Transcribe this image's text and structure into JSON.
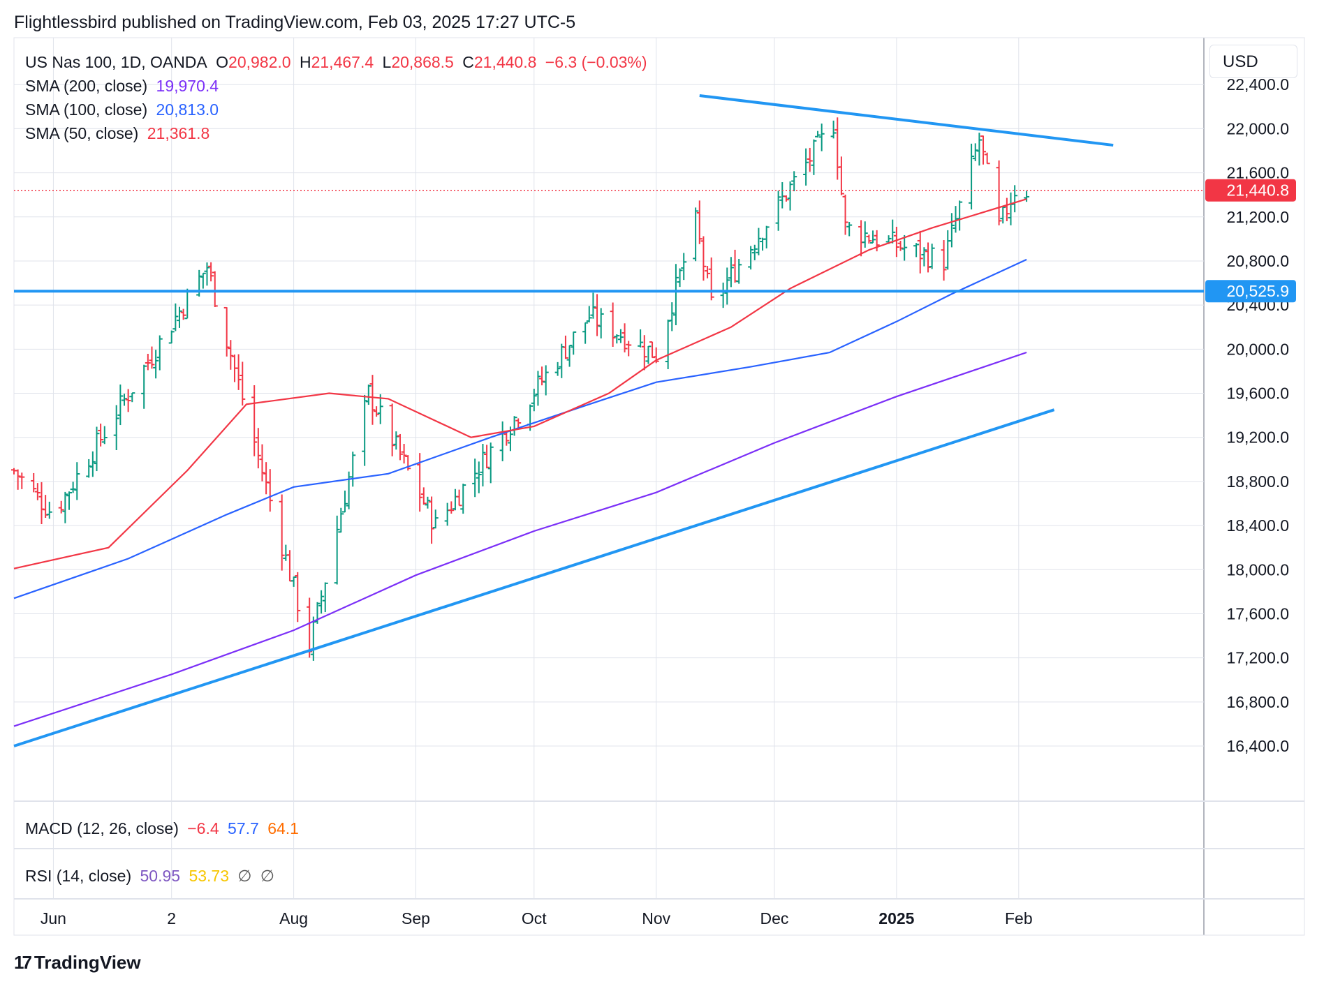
{
  "header": {
    "publisher_line": "Flightlessbird published on TradingView.com, Feb 03, 2025 17:27 UTC-5"
  },
  "legend": {
    "symbol": "US Nas 100, 1D, OANDA",
    "o_label": "O",
    "o_value": "20,982.0",
    "h_label": "H",
    "h_value": "21,467.4",
    "l_label": "L",
    "l_value": "20,868.5",
    "c_label": "C",
    "c_value": "21,440.8",
    "change": "−6.3 (−0.03%)",
    "sma200_label": "SMA (200, close)",
    "sma200_value": "19,970.4",
    "sma100_label": "SMA (100, close)",
    "sma100_value": "20,813.0",
    "sma50_label": "SMA (50, close)",
    "sma50_value": "21,361.8"
  },
  "currency": "USD",
  "indicators": {
    "macd_label": "MACD (12, 26, close)",
    "macd_v1": "−6.4",
    "macd_v2": "57.7",
    "macd_v3": "64.1",
    "rsi_label": "RSI (14, close)",
    "rsi_v1": "50.95",
    "rsi_v2": "53.73",
    "rsi_v3": "∅",
    "rsi_v4": "∅"
  },
  "footer": {
    "brand": "TradingView",
    "logo_mark": "17"
  },
  "colors": {
    "up": "#089981",
    "down": "#f23645",
    "sma200": "#7b2ff7",
    "sma100": "#2962ff",
    "sma50": "#f23645",
    "trendline": "#2196f3",
    "grid": "#e0e3eb"
  },
  "chart_data": {
    "type": "candlestick",
    "title": "US Nas 100, 1D, OANDA",
    "y_axis": {
      "ticks": [
        16400,
        16800,
        17200,
        17600,
        18000,
        18400,
        18800,
        19200,
        19600,
        20000,
        20400,
        20800,
        21200,
        21600,
        22000,
        22400
      ],
      "tick_labels": [
        "16,400.0",
        "16,800.0",
        "17,200.0",
        "17,600.0",
        "18,000.0",
        "18,400.0",
        "18,800.0",
        "19,200.0",
        "19,600.0",
        "20,000.0",
        "20,400.0",
        "20,800.0",
        "21,200.0",
        "21,600.0",
        "22,000.0",
        "22,400.0"
      ],
      "range": [
        15900,
        22800
      ]
    },
    "x_axis": {
      "labels": [
        "Jun",
        "2",
        "Aug",
        "Sep",
        "Oct",
        "Nov",
        "Dec",
        "2025",
        "Feb"
      ],
      "label_dates": [
        "2024-06-01",
        "2024-07-01",
        "2024-08-01",
        "2024-09-01",
        "2024-10-01",
        "2024-11-01",
        "2024-12-01",
        "2025-01-01",
        "2025-02-01"
      ],
      "range": [
        "2024-05-22",
        "2025-03-20"
      ]
    },
    "price_labels": [
      {
        "value": 21440.8,
        "label": "21,440.8",
        "style": "last-price"
      },
      {
        "value": 20525.9,
        "label": "20,525.9",
        "style": "horizontal-line"
      }
    ],
    "key_points": [
      {
        "date": "2024-05-22",
        "close": 18900
      },
      {
        "date": "2024-06-01",
        "close": 18500
      },
      {
        "date": "2024-07-10",
        "close": 20750
      },
      {
        "date": "2024-08-05",
        "close": 17300
      },
      {
        "date": "2024-08-20",
        "close": 19600
      },
      {
        "date": "2024-09-06",
        "close": 18400
      },
      {
        "date": "2024-10-15",
        "close": 20300
      },
      {
        "date": "2024-11-01",
        "close": 19950
      },
      {
        "date": "2024-11-11",
        "close": 21150
      },
      {
        "date": "2024-11-15",
        "close": 20400
      },
      {
        "date": "2024-12-16",
        "close": 22050
      },
      {
        "date": "2024-12-19",
        "close": 21100
      },
      {
        "date": "2025-01-13",
        "close": 20800
      },
      {
        "date": "2025-01-22",
        "close": 21900
      },
      {
        "date": "2025-01-27",
        "close": 21100
      },
      {
        "date": "2025-01-31",
        "close": 21450
      },
      {
        "date": "2025-02-03",
        "close": 21440.8
      }
    ],
    "sma50": [
      [
        "2024-05-22",
        18010
      ],
      [
        "2024-06-15",
        18200
      ],
      [
        "2024-07-05",
        18900
      ],
      [
        "2024-07-20",
        19500
      ],
      [
        "2024-08-10",
        19600
      ],
      [
        "2024-08-25",
        19550
      ],
      [
        "2024-09-15",
        19200
      ],
      [
        "2024-10-01",
        19300
      ],
      [
        "2024-10-20",
        19600
      ],
      [
        "2024-11-01",
        19900
      ],
      [
        "2024-11-20",
        20200
      ],
      [
        "2024-12-05",
        20550
      ],
      [
        "2024-12-25",
        20900
      ],
      [
        "2025-01-10",
        21100
      ],
      [
        "2025-02-03",
        21361.8
      ]
    ],
    "sma100": [
      [
        "2024-05-22",
        17740
      ],
      [
        "2024-06-20",
        18100
      ],
      [
        "2024-07-15",
        18500
      ],
      [
        "2024-08-01",
        18750
      ],
      [
        "2024-08-25",
        18870
      ],
      [
        "2024-09-20",
        19200
      ],
      [
        "2024-10-15",
        19500
      ],
      [
        "2024-11-01",
        19700
      ],
      [
        "2024-11-25",
        19840
      ],
      [
        "2024-12-15",
        19970
      ],
      [
        "2025-01-01",
        20250
      ],
      [
        "2025-01-15",
        20500
      ],
      [
        "2025-02-03",
        20813.0
      ]
    ],
    "sma200": [
      [
        "2024-05-22",
        16580
      ],
      [
        "2024-07-01",
        17050
      ],
      [
        "2024-08-01",
        17450
      ],
      [
        "2024-09-01",
        17950
      ],
      [
        "2024-10-01",
        18350
      ],
      [
        "2024-11-01",
        18700
      ],
      [
        "2024-12-01",
        19150
      ],
      [
        "2025-01-01",
        19570
      ],
      [
        "2025-02-03",
        19970.4
      ]
    ],
    "trendlines": [
      {
        "name": "upper",
        "from": [
          "2024-11-12",
          22300
        ],
        "to": [
          "2025-02-25",
          21850
        ]
      },
      {
        "name": "lower",
        "from": [
          "2024-05-22",
          16400
        ],
        "to": [
          "2025-02-10",
          19450
        ]
      },
      {
        "name": "horizontal",
        "value": 20525.9
      }
    ],
    "grid": true
  }
}
